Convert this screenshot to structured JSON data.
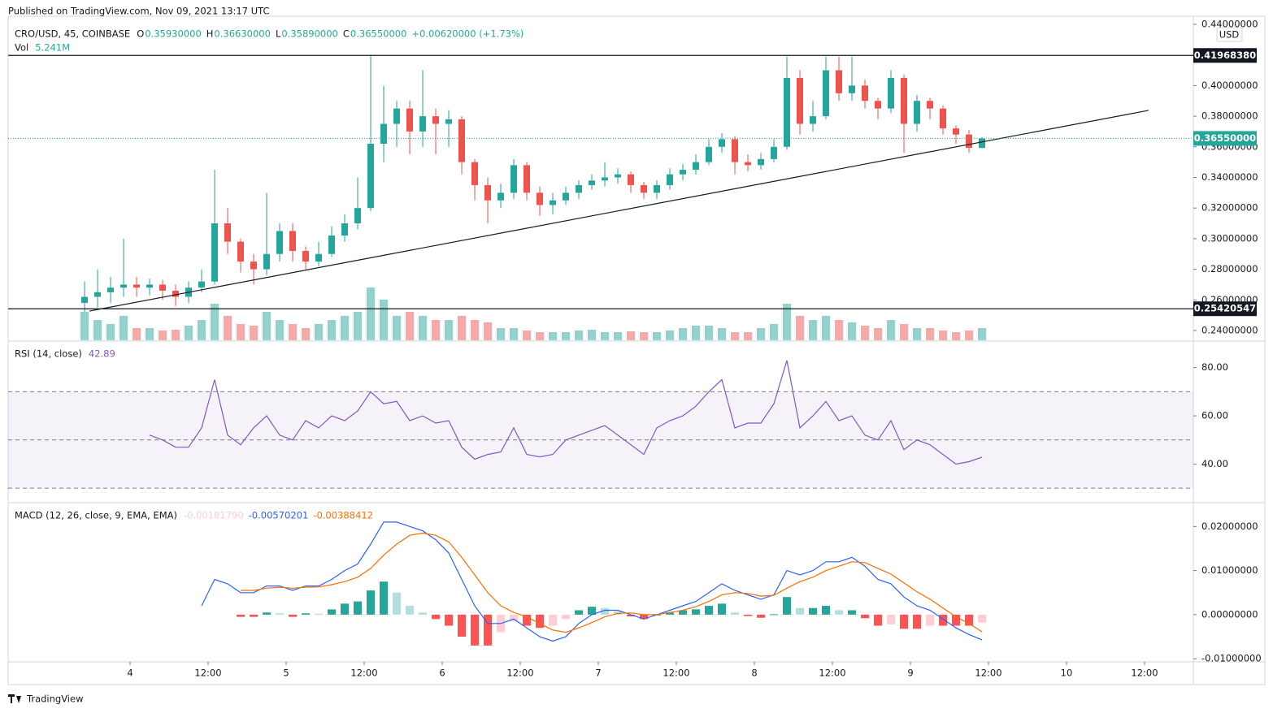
{
  "header": "Published on TradingView.com, Nov 09, 2021 13:17 UTC",
  "footer": "TradingView",
  "chart_data": [
    {
      "type": "candlestick",
      "title": "CRO/USD, 45, COINBASE",
      "ohlc_legend": [
        {
          "key": "O",
          "value": "0.35930000"
        },
        {
          "key": "H",
          "value": "0.36630000"
        },
        {
          "key": "L",
          "value": "0.35890000"
        },
        {
          "key": "C",
          "value": "0.36550000"
        }
      ],
      "change": "+0.00620000 (+1.73%)",
      "volume_title": "Vol",
      "volume_value": "5.241M",
      "y_unit": "USD",
      "up_color": "#26a69a",
      "down_color": "#ef5350",
      "x": [
        -7,
        -5,
        -3,
        -1,
        1,
        3,
        5,
        7,
        9,
        11,
        13,
        15,
        17,
        19,
        21,
        23,
        25,
        27,
        29,
        31,
        33,
        35,
        37,
        39,
        41,
        43,
        45,
        47,
        49,
        51,
        53,
        55,
        57,
        59,
        61,
        63,
        65,
        67,
        69,
        71,
        73,
        75,
        77,
        79,
        81,
        83,
        85,
        87,
        89,
        91,
        93,
        95,
        97,
        99,
        101,
        103,
        105,
        107,
        109,
        111,
        113,
        115,
        117,
        119,
        121,
        123,
        125,
        127,
        129,
        131
      ],
      "open": [
        0.258,
        0.262,
        0.265,
        0.268,
        0.27,
        0.268,
        0.27,
        0.266,
        0.262,
        0.268,
        0.272,
        0.31,
        0.298,
        0.285,
        0.28,
        0.29,
        0.305,
        0.292,
        0.285,
        0.29,
        0.302,
        0.31,
        0.32,
        0.362,
        0.375,
        0.385,
        0.37,
        0.38,
        0.375,
        0.378,
        0.35,
        0.335,
        0.325,
        0.33,
        0.348,
        0.33,
        0.322,
        0.325,
        0.33,
        0.335,
        0.338,
        0.34,
        0.342,
        0.335,
        0.33,
        0.335,
        0.342,
        0.345,
        0.35,
        0.36,
        0.365,
        0.35,
        0.348,
        0.352,
        0.36,
        0.405,
        0.375,
        0.38,
        0.41,
        0.395,
        0.4,
        0.39,
        0.385,
        0.405,
        0.375,
        0.39,
        0.385,
        0.372,
        0.368,
        0.3593
      ],
      "high": [
        0.272,
        0.28,
        0.275,
        0.3,
        0.275,
        0.274,
        0.273,
        0.27,
        0.272,
        0.28,
        0.345,
        0.32,
        0.3,
        0.29,
        0.33,
        0.31,
        0.31,
        0.295,
        0.298,
        0.308,
        0.316,
        0.34,
        0.42,
        0.4,
        0.39,
        0.39,
        0.41,
        0.385,
        0.384,
        0.38,
        0.352,
        0.34,
        0.336,
        0.352,
        0.35,
        0.334,
        0.33,
        0.334,
        0.338,
        0.342,
        0.35,
        0.346,
        0.344,
        0.337,
        0.338,
        0.346,
        0.349,
        0.355,
        0.365,
        0.369,
        0.367,
        0.355,
        0.356,
        0.365,
        0.419,
        0.41,
        0.39,
        0.419,
        0.419,
        0.419,
        0.404,
        0.392,
        0.41,
        0.407,
        0.394,
        0.392,
        0.387,
        0.374,
        0.371,
        0.3663
      ],
      "low": [
        0.252,
        0.255,
        0.258,
        0.262,
        0.262,
        0.263,
        0.26,
        0.256,
        0.258,
        0.265,
        0.27,
        0.29,
        0.278,
        0.27,
        0.276,
        0.285,
        0.285,
        0.28,
        0.282,
        0.288,
        0.298,
        0.306,
        0.318,
        0.35,
        0.36,
        0.355,
        0.36,
        0.355,
        0.36,
        0.342,
        0.325,
        0.31,
        0.32,
        0.326,
        0.325,
        0.315,
        0.316,
        0.322,
        0.326,
        0.332,
        0.334,
        0.336,
        0.33,
        0.326,
        0.326,
        0.332,
        0.338,
        0.342,
        0.348,
        0.356,
        0.342,
        0.344,
        0.345,
        0.35,
        0.358,
        0.368,
        0.37,
        0.378,
        0.39,
        0.39,
        0.385,
        0.378,
        0.382,
        0.356,
        0.37,
        0.378,
        0.368,
        0.362,
        0.356,
        0.3589
      ],
      "close": [
        0.262,
        0.265,
        0.268,
        0.27,
        0.268,
        0.27,
        0.266,
        0.262,
        0.268,
        0.272,
        0.31,
        0.298,
        0.285,
        0.28,
        0.29,
        0.305,
        0.292,
        0.285,
        0.29,
        0.302,
        0.31,
        0.32,
        0.362,
        0.375,
        0.385,
        0.37,
        0.38,
        0.375,
        0.378,
        0.35,
        0.335,
        0.325,
        0.33,
        0.348,
        0.33,
        0.322,
        0.325,
        0.33,
        0.335,
        0.338,
        0.34,
        0.342,
        0.335,
        0.33,
        0.335,
        0.342,
        0.345,
        0.35,
        0.36,
        0.365,
        0.35,
        0.348,
        0.352,
        0.36,
        0.405,
        0.375,
        0.38,
        0.41,
        0.395,
        0.4,
        0.39,
        0.385,
        0.405,
        0.375,
        0.39,
        0.385,
        0.372,
        0.368,
        0.3593,
        0.3655
      ],
      "volume": [
        3.5,
        2.5,
        2,
        3,
        1.5,
        1.5,
        1.2,
        1.3,
        1.8,
        2.5,
        4.5,
        3,
        2,
        1.8,
        3.5,
        2.5,
        2,
        1.5,
        2,
        2.5,
        3,
        3.5,
        6.5,
        5,
        3,
        3.5,
        3,
        2.5,
        2.5,
        3,
        2.5,
        2.2,
        1.5,
        1.5,
        1.2,
        1,
        1,
        1,
        1.2,
        1.3,
        1,
        1,
        1.1,
        1,
        1,
        1.2,
        1.5,
        1.8,
        1.8,
        1.5,
        1,
        1,
        1.5,
        2,
        4.5,
        3,
        2.5,
        3,
        2.5,
        2.2,
        1.8,
        1.5,
        2.5,
        2,
        1.5,
        1.5,
        1.2,
        1,
        1.2,
        1.5
      ],
      "xlim": [
        -18.75,
        163.5
      ],
      "xticks": [
        {
          "value": 0,
          "label": "4"
        },
        {
          "value": 12,
          "label": "12:00"
        },
        {
          "value": 24,
          "label": "5"
        },
        {
          "value": 36,
          "label": "12:00"
        },
        {
          "value": 48,
          "label": "6"
        },
        {
          "value": 60,
          "label": "12:00"
        },
        {
          "value": 72,
          "label": "7"
        },
        {
          "value": 84,
          "label": "12:00"
        },
        {
          "value": 96,
          "label": "8"
        },
        {
          "value": 108,
          "label": "12:00"
        },
        {
          "value": 120,
          "label": "9"
        },
        {
          "value": 132,
          "label": "12:00"
        },
        {
          "value": 144,
          "label": "10"
        },
        {
          "value": 156,
          "label": "12:00"
        }
      ],
      "ylim": [
        0.2331,
        0.4453
      ],
      "yticks": [
        {
          "value": 0.44,
          "label": "0.44000000"
        },
        {
          "value": 0.4,
          "label": "0.40000000"
        },
        {
          "value": 0.38,
          "label": "0.38000000"
        },
        {
          "value": 0.36,
          "label": "0.36000000"
        },
        {
          "value": 0.34,
          "label": "0.34000000"
        },
        {
          "value": 0.32,
          "label": "0.32000000"
        },
        {
          "value": 0.3,
          "label": "0.30000000"
        },
        {
          "value": 0.28,
          "label": "0.28000000"
        },
        {
          "value": 0.26,
          "label": "0.26000000"
        },
        {
          "value": 0.24,
          "label": "0.24000000"
        }
      ],
      "levels": [
        {
          "value": 0.4196838,
          "label": "0.41968380"
        },
        {
          "value": 0.25420547,
          "label": "0.25420547"
        }
      ],
      "last_price": {
        "value": 0.3655,
        "label": "0.36550000"
      },
      "trendline": {
        "x": [
          -6.25,
          156.6
        ],
        "y": [
          0.2527,
          0.3838
        ]
      }
    },
    {
      "type": "line",
      "title": "RSI (14, close)",
      "value_label": "42.89",
      "color": "#7e57c2",
      "values": [
        null,
        null,
        null,
        null,
        null,
        52,
        50,
        47,
        47,
        55,
        75,
        52,
        48,
        55,
        60,
        52,
        50,
        58,
        55,
        60,
        58,
        62,
        70,
        65,
        66,
        58,
        60,
        57,
        58,
        47,
        42,
        44,
        45,
        55,
        44,
        43,
        44,
        50,
        52,
        54,
        56,
        52,
        48,
        44,
        55,
        58,
        60,
        64,
        70,
        75,
        55,
        57,
        57,
        65,
        83,
        55,
        60,
        66,
        58,
        60,
        52,
        50,
        58,
        46,
        50,
        48,
        44,
        40,
        41,
        42.89
      ],
      "bands": [
        70,
        50,
        30
      ],
      "ylim": [
        24,
        91
      ],
      "yticks": [
        {
          "value": 80,
          "label": "80.00"
        },
        {
          "value": 60,
          "label": "60.00"
        },
        {
          "value": 40,
          "label": "40.00"
        }
      ]
    },
    {
      "type": "line",
      "title": "MACD (12, 26, close, 9, EMA, EMA)",
      "histogram": {
        "value_label": "-0.00181790",
        "colors": [
          "#26a69a",
          "#b2dfdb",
          "#ff5252",
          "#ffcdd2"
        ],
        "values": [
          null,
          null,
          null,
          null,
          null,
          null,
          null,
          null,
          null,
          null,
          null,
          null,
          -0.0005,
          -0.0005,
          0.0005,
          0.0003,
          -0.0005,
          0.0003,
          0.0002,
          0.0012,
          0.0025,
          0.003,
          0.0055,
          0.0075,
          0.005,
          0.002,
          0.0005,
          -0.001,
          -0.0025,
          -0.005,
          -0.007,
          -0.007,
          -0.004,
          -0.0015,
          -0.0025,
          -0.003,
          -0.0025,
          -0.001,
          0.001,
          0.0018,
          0.0015,
          0.0007,
          -0.0004,
          -0.001,
          0,
          0.0005,
          0.001,
          0.0012,
          0.002,
          0.0025,
          0.0005,
          -0.0003,
          -0.0007,
          0.0001,
          0.004,
          0.0015,
          0.0015,
          0.002,
          0.001,
          0.001,
          -0.0008,
          -0.0025,
          -0.0022,
          -0.0032,
          -0.0032,
          -0.0025,
          -0.0025,
          -0.0025,
          -0.0025,
          -0.0018179
        ]
      },
      "series": [
        {
          "color": "#2962ff",
          "value_label": "-0.00570201",
          "values": [
            null,
            null,
            null,
            null,
            null,
            null,
            null,
            null,
            null,
            0.002,
            0.008,
            0.007,
            0.005,
            0.005,
            0.0065,
            0.0065,
            0.0055,
            0.0065,
            0.0065,
            0.008,
            0.01,
            0.0115,
            0.016,
            0.021,
            0.021,
            0.02,
            0.019,
            0.017,
            0.014,
            0.008,
            0.002,
            -0.002,
            -0.002,
            -0.001,
            -0.003,
            -0.005,
            -0.006,
            -0.005,
            -0.002,
            0,
            0.001,
            0.001,
            0,
            -0.001,
            0,
            0.001,
            0.002,
            0.003,
            0.005,
            0.007,
            0.0055,
            0.0045,
            0.0035,
            0.0045,
            0.01,
            0.009,
            0.01,
            0.012,
            0.012,
            0.013,
            0.011,
            0.008,
            0.007,
            0.004,
            0.002,
            0.001,
            -0.001,
            -0.003,
            -0.0045,
            -0.00570201
          ]
        },
        {
          "color": "#ff6d00",
          "value_label": "-0.00388412",
          "values": [
            null,
            null,
            null,
            null,
            null,
            null,
            null,
            null,
            null,
            null,
            null,
            null,
            0.0055,
            0.0055,
            0.006,
            0.0062,
            0.006,
            0.0062,
            0.0063,
            0.0068,
            0.0075,
            0.0085,
            0.0105,
            0.0135,
            0.016,
            0.018,
            0.0185,
            0.018,
            0.0165,
            0.013,
            0.009,
            0.005,
            0.002,
            0.0005,
            -0.0005,
            -0.002,
            -0.0035,
            -0.004,
            -0.003,
            -0.0018,
            -0.0005,
            0.0003,
            0.0004,
            0,
            0,
            0.0005,
            0.001,
            0.0018,
            0.003,
            0.0045,
            0.005,
            0.0048,
            0.0042,
            0.0044,
            0.006,
            0.0075,
            0.0085,
            0.01,
            0.011,
            0.012,
            0.0118,
            0.0105,
            0.0092,
            0.0072,
            0.0052,
            0.0035,
            0.0015,
            -0.0005,
            -0.002,
            -0.00388412
          ]
        }
      ],
      "ylim": [
        -0.0107,
        0.0254
      ],
      "yticks": [
        {
          "value": 0.02,
          "label": "0.02000000"
        },
        {
          "value": 0.01,
          "label": "0.01000000"
        },
        {
          "value": 0,
          "label": "0.00000000"
        },
        {
          "value": -0.01,
          "label": "-0.01000000"
        }
      ]
    }
  ]
}
